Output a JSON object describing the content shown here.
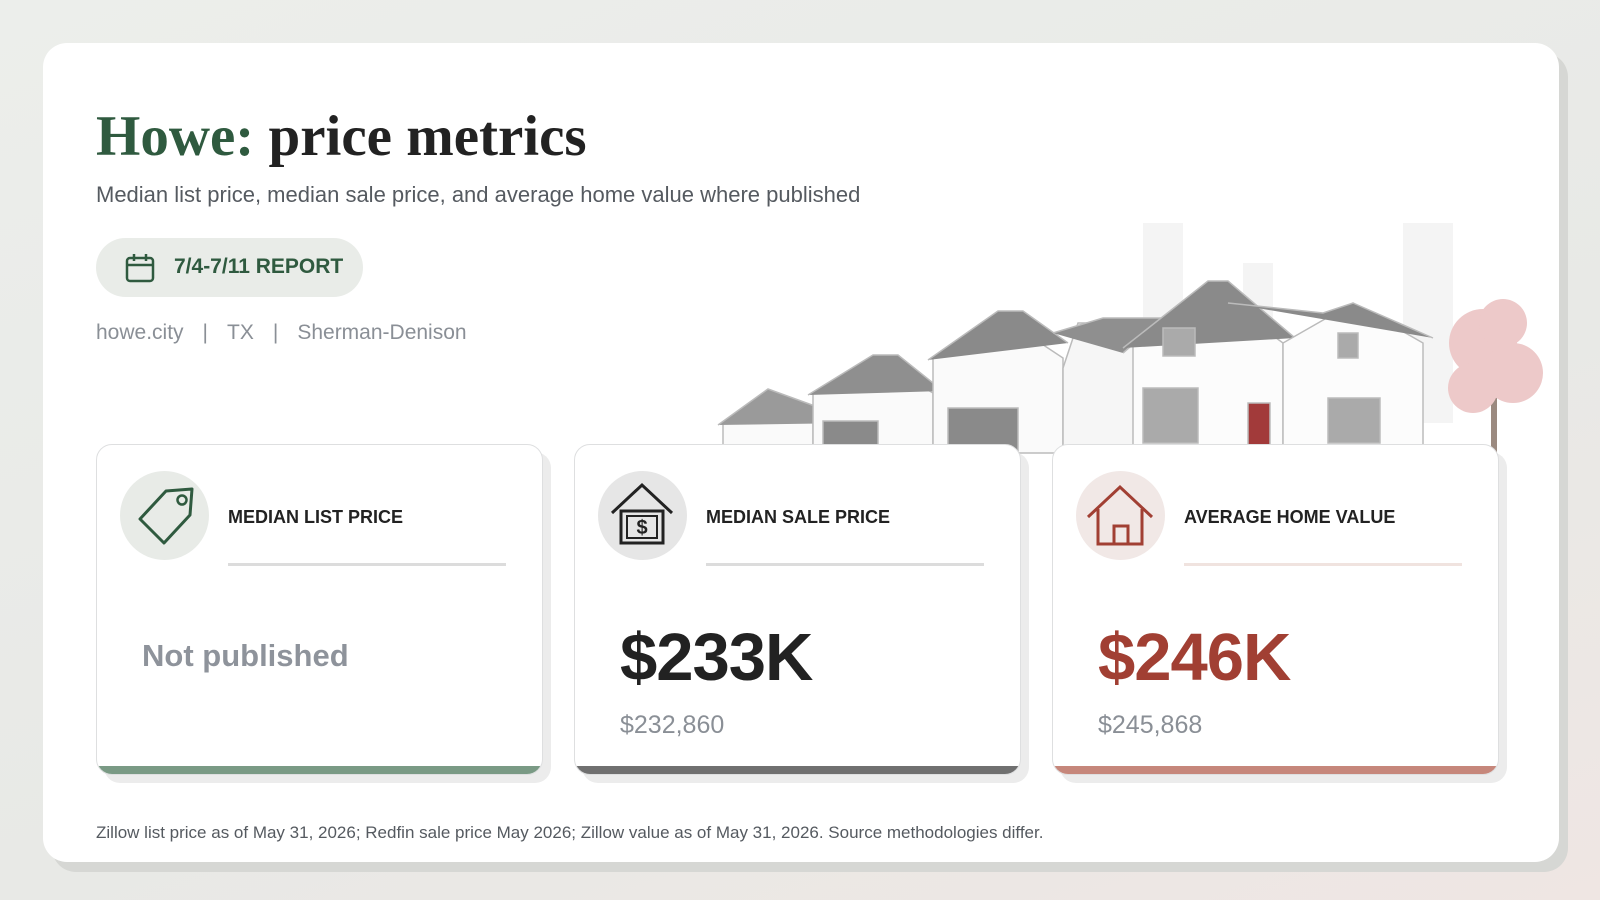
{
  "header": {
    "title_place": "Howe:",
    "title_rest": "price metrics",
    "subtitle": "Median list price, median sale price, and average home value where published",
    "badge": "7/4-7/11 REPORT",
    "meta": [
      "howe.city",
      "TX",
      "Sherman-Denison"
    ],
    "separator": "|"
  },
  "cards": [
    {
      "label": "MEDIAN LIST PRICE",
      "value": "Not published"
    },
    {
      "label": "MEDIAN SALE PRICE",
      "value": "$233K",
      "detail": "$232,860"
    },
    {
      "label": "AVERAGE HOME VALUE",
      "value": "$246K",
      "detail": "$245,868"
    }
  ],
  "footnote": "Zillow list price as of May 31, 2026; Redfin sale price May 2026; Zillow value as of May 31, 2026. Source methodologies differ."
}
